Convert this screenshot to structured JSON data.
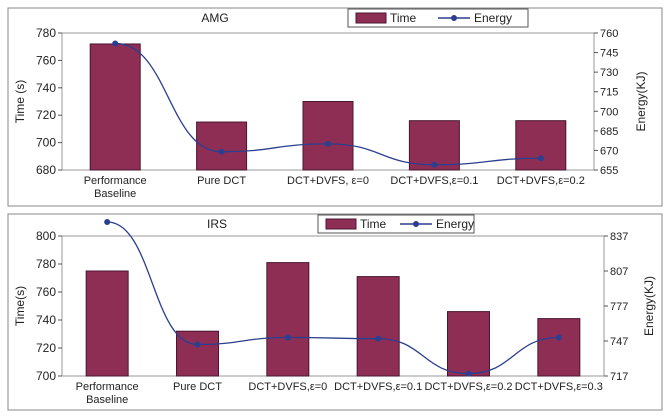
{
  "colors": {
    "bar_fill": "#8f2e55",
    "bar_stroke": "#4a1630",
    "line_color": "#2a3f8f",
    "frame": "#888888",
    "grid": "#dddddd",
    "background": "#ffffff"
  },
  "chart_data": [
    {
      "type": "bar",
      "title": "AMG",
      "categories": [
        "Performance Baseline",
        "Pure DCT",
        "DCT+DVFS, ε=0",
        "DCT+DVFS,ε=0.1",
        "DCT+DVFS,ε=0.2"
      ],
      "category_lines": [
        [
          "Performance",
          "Baseline"
        ],
        [
          "Pure DCT"
        ],
        [
          "DCT+DVFS, ε=0"
        ],
        [
          "DCT+DVFS,ε=0.1"
        ],
        [
          "DCT+DVFS,ε=0.2"
        ]
      ],
      "series": [
        {
          "name": "Time",
          "kind": "bar",
          "axis": "left",
          "values": [
            772,
            715,
            730,
            716,
            716
          ]
        },
        {
          "name": "Energy",
          "kind": "line",
          "axis": "right",
          "values": [
            752,
            669,
            675,
            659,
            664
          ]
        }
      ],
      "ylabel": "Time (s)",
      "y2label": "Energy(KJ)",
      "ylim": [
        680,
        780
      ],
      "yticks": [
        680,
        700,
        720,
        740,
        760,
        780
      ],
      "y2lim": [
        655,
        760
      ],
      "y2ticks": [
        655,
        670,
        685,
        700,
        715,
        730,
        745,
        760
      ],
      "legend": "top-center",
      "grid": false
    },
    {
      "type": "bar",
      "title": "IRS",
      "categories": [
        "Performance Baseline",
        "Pure DCT",
        "DCT+DVFS,ε=0",
        "DCT+DVFS,ε=0.1",
        "DCT+DVFS,ε=0.2",
        "DCT+DVFS,ε=0.3"
      ],
      "category_lines": [
        [
          "Performance",
          "Baseline"
        ],
        [
          "Pure DCT"
        ],
        [
          "DCT+DVFS,ε=0"
        ],
        [
          "DCT+DVFS,ε=0.1"
        ],
        [
          "DCT+DVFS,ε=0.2"
        ],
        [
          "DCT+DVFS,ε=0.3"
        ]
      ],
      "series": [
        {
          "name": "Time",
          "kind": "bar",
          "axis": "left",
          "values": [
            775,
            732,
            781,
            771,
            746,
            741
          ]
        },
        {
          "name": "Energy",
          "kind": "line",
          "axis": "right",
          "values": [
            849,
            744,
            750,
            749,
            719,
            750
          ]
        }
      ],
      "ylabel": "Time(s)",
      "y2label": "Energy(KJ)",
      "ylim": [
        700,
        800
      ],
      "yticks": [
        700,
        720,
        740,
        760,
        780,
        800
      ],
      "y2lim": [
        717,
        837
      ],
      "y2ticks": [
        717,
        747,
        777,
        807,
        837
      ],
      "legend": "top-center",
      "grid": false
    }
  ]
}
